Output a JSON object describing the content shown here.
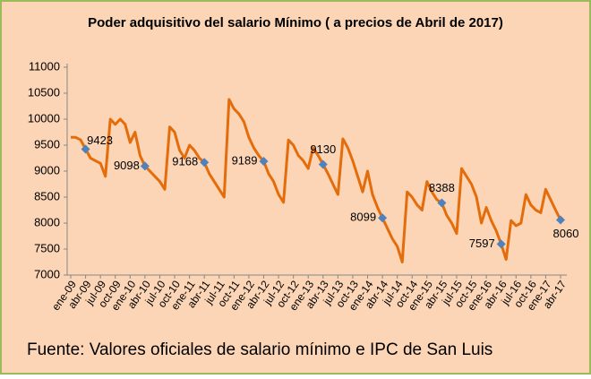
{
  "chart_data": {
    "type": "line",
    "title": "Poder adquisitivo del salario Mínimo ( a precios de Abril de 2017)",
    "footnote": "Fuente: Valores oficiales de salario mínimo e IPC de San Luis",
    "categories": [
      "ene-09",
      null,
      null,
      "abr-09",
      null,
      null,
      "jul-09",
      null,
      null,
      "oct-09",
      null,
      null,
      "ene-10",
      null,
      null,
      "abr-10",
      null,
      null,
      "jul-10",
      null,
      null,
      "oct-10",
      null,
      null,
      "ene-11",
      null,
      null,
      "abr-11",
      null,
      null,
      "jul-11",
      null,
      null,
      "oct-11",
      null,
      null,
      "ene-12",
      null,
      null,
      "abr-12",
      null,
      null,
      "jul-12",
      null,
      null,
      "oct-12",
      null,
      null,
      "ene-13",
      null,
      null,
      "abr-13",
      null,
      null,
      "jul-13",
      null,
      null,
      "oct-13",
      null,
      null,
      "ene-14",
      null,
      null,
      "abr-14",
      null,
      null,
      "jul-14",
      null,
      null,
      "oct-14",
      null,
      null,
      "ene-15",
      null,
      null,
      "abr-15",
      null,
      null,
      "jul-15",
      null,
      null,
      "oct-15",
      null,
      null,
      "ene-16",
      null,
      null,
      "abr-16",
      null,
      null,
      "jul-16",
      null,
      null,
      "oct-16",
      null,
      null,
      "ene-17",
      null,
      null,
      "abr-17"
    ],
    "series": [
      {
        "color": "#e46c0a",
        "values": [
          9650,
          9650,
          9600,
          9423,
          9250,
          9200,
          9150,
          8900,
          10000,
          9900,
          10000,
          9900,
          9550,
          9750,
          9300,
          9098,
          9000,
          8900,
          8800,
          8650,
          9850,
          9750,
          9400,
          9250,
          9500,
          9400,
          9250,
          9168,
          8950,
          8800,
          8650,
          8500,
          10380,
          10200,
          10100,
          9950,
          9650,
          9450,
          9300,
          9189,
          8950,
          8800,
          8550,
          8400,
          9600,
          9500,
          9300,
          9200,
          9050,
          9450,
          9300,
          9130,
          8950,
          8750,
          8550,
          9620,
          9450,
          9200,
          8900,
          8600,
          9000,
          8550,
          8300,
          8099,
          7900,
          7700,
          7550,
          7250,
          8600,
          8500,
          8350,
          8250,
          8800,
          8600,
          8450,
          8388,
          8150,
          8000,
          7800,
          9050,
          8900,
          8750,
          8500,
          8000,
          8300,
          8050,
          7850,
          7597,
          7300,
          8050,
          7950,
          8000,
          8550,
          8350,
          8250,
          8200,
          8650,
          8450,
          8250,
          8060
        ]
      },
      {
        "color": "#4f81bd",
        "values": [
          null,
          null,
          null,
          9423,
          null,
          null,
          null,
          null,
          null,
          null,
          null,
          null,
          null,
          null,
          null,
          9098,
          null,
          null,
          null,
          null,
          null,
          null,
          null,
          null,
          null,
          null,
          null,
          9168,
          null,
          null,
          null,
          null,
          null,
          null,
          null,
          null,
          null,
          null,
          null,
          9189,
          null,
          null,
          null,
          null,
          null,
          null,
          null,
          null,
          null,
          null,
          null,
          9130,
          null,
          null,
          null,
          null,
          null,
          null,
          null,
          null,
          null,
          null,
          null,
          8099,
          null,
          null,
          null,
          null,
          null,
          null,
          null,
          null,
          null,
          null,
          null,
          8388,
          null,
          null,
          null,
          null,
          null,
          null,
          null,
          null,
          null,
          null,
          null,
          7597,
          null,
          null,
          null,
          null,
          null,
          null,
          null,
          null,
          null,
          null,
          null,
          8060
        ]
      }
    ],
    "ylim": [
      7000,
      11000
    ],
    "yticks": [
      7000,
      7500,
      8000,
      8500,
      9000,
      9500,
      10000,
      10500,
      11000
    ]
  }
}
